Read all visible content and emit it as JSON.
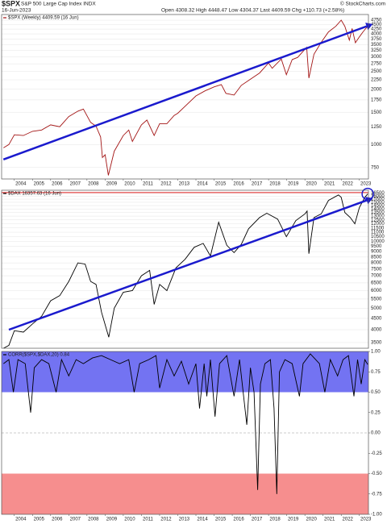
{
  "header": {
    "symbol": "$SPX",
    "name": "S&P 500 Large Cap Index INDX",
    "date": "16-Jun-2023",
    "quote": "Open 4308.32 High 4448.47 Low 4304.37 Last 4409.59 Chg +110.73 (+2.58%)",
    "source": "© StockCharts.com"
  },
  "chart_data": [
    {
      "type": "line",
      "title": "$SPX (Weekly) 4409.59 (16 Jun)",
      "color": "#a31515",
      "log": true,
      "x": [
        2003.4,
        2003.7,
        2004.0,
        2004.5,
        2005.0,
        2005.5,
        2006.0,
        2006.5,
        2007.0,
        2007.5,
        2007.8,
        2008.2,
        2008.5,
        2008.75,
        2008.85,
        2009.0,
        2009.18,
        2009.5,
        2010.0,
        2010.3,
        2010.5,
        2011.0,
        2011.3,
        2011.7,
        2012.0,
        2012.4,
        2012.8,
        2013.0,
        2013.5,
        2014.0,
        2014.5,
        2015.0,
        2015.4,
        2015.65,
        2016.1,
        2016.5,
        2017.0,
        2017.5,
        2018.0,
        2018.2,
        2018.7,
        2018.98,
        2019.3,
        2019.6,
        2020.0,
        2020.1,
        2020.22,
        2020.5,
        2020.9,
        2021.3,
        2021.7,
        2022.0,
        2022.2,
        2022.45,
        2022.6,
        2022.78,
        2023.0,
        2023.2,
        2023.46
      ],
      "values": [
        960,
        1000,
        1130,
        1120,
        1180,
        1200,
        1280,
        1250,
        1420,
        1520,
        1560,
        1320,
        1260,
        1100,
        850,
        880,
        680,
        920,
        1120,
        1200,
        1040,
        1280,
        1360,
        1120,
        1300,
        1300,
        1440,
        1480,
        1650,
        1840,
        1960,
        2060,
        2120,
        1900,
        1860,
        2100,
        2270,
        2450,
        2780,
        2600,
        2920,
        2400,
        2900,
        2980,
        3300,
        3380,
        2300,
        3100,
        3600,
        4100,
        4400,
        4750,
        4400,
        3700,
        4280,
        3580,
        3850,
        4100,
        4409.59
      ],
      "xlim": [
        2003.3,
        2023.5
      ],
      "ylim": [
        650,
        5100
      ],
      "xticks": [
        2004,
        2005,
        2006,
        2007,
        2008,
        2009,
        2010,
        2011,
        2012,
        2013,
        2014,
        2015,
        2016,
        2017,
        2018,
        2019,
        2020,
        2021,
        2022,
        2023
      ],
      "yticks": [
        750,
        1000,
        1250,
        1500,
        1750,
        2000,
        2250,
        2500,
        2750,
        3000,
        3250,
        3500,
        3750,
        4000,
        4250,
        4500,
        4750
      ],
      "grid": true,
      "trendline": {
        "x": [
          2003.4,
          2023.4
        ],
        "y": [
          830,
          4400
        ],
        "color": "#1a1acd"
      }
    },
    {
      "type": "line",
      "title": "$DAX 16357.63 (16 Jun)",
      "color": "#000000",
      "log": true,
      "x": [
        2003.4,
        2003.7,
        2004.0,
        2004.5,
        2005.0,
        2005.5,
        2006.0,
        2006.5,
        2007.0,
        2007.5,
        2007.9,
        2008.2,
        2008.5,
        2008.8,
        2009.2,
        2009.5,
        2010.0,
        2010.5,
        2011.0,
        2011.45,
        2011.7,
        2012.0,
        2012.4,
        2012.9,
        2013.4,
        2013.9,
        2014.4,
        2014.8,
        2015.25,
        2015.7,
        2016.1,
        2016.5,
        2016.9,
        2017.5,
        2017.9,
        2018.5,
        2018.98,
        2019.5,
        2020.0,
        2020.12,
        2020.22,
        2020.5,
        2020.9,
        2021.3,
        2021.85,
        2022.0,
        2022.2,
        2022.5,
        2022.75,
        2023.0,
        2023.3,
        2023.46
      ],
      "values": [
        3300,
        3400,
        3960,
        3900,
        4250,
        4600,
        5400,
        5700,
        6600,
        8000,
        7900,
        6600,
        6400,
        4800,
        3700,
        5000,
        5900,
        6000,
        7000,
        7400,
        5200,
        6400,
        6000,
        7600,
        8300,
        9400,
        9800,
        8600,
        12200,
        9600,
        8900,
        9700,
        11400,
        12800,
        13400,
        12600,
        10500,
        12400,
        13300,
        13700,
        8800,
        12800,
        13300,
        15300,
        16200,
        15800,
        13500,
        12800,
        12000,
        14200,
        15800,
        16357.63
      ],
      "xlim": [
        2003.3,
        2023.5
      ],
      "ylim": [
        3300,
        17000
      ],
      "yticks": [
        3500,
        4000,
        4500,
        5000,
        5500,
        6000,
        6500,
        7000,
        7500,
        8000,
        8500,
        9000,
        9500,
        10000,
        10500,
        11000,
        11500,
        12000,
        12500,
        13000,
        13500,
        14000,
        14500,
        15000,
        15500,
        16000,
        16500
      ],
      "grid": true,
      "hline": {
        "value": 16600,
        "color": "#e02020"
      },
      "trendline": {
        "x": [
          2003.7,
          2023.4
        ],
        "y": [
          4000,
          15300
        ],
        "color": "#1a1acd"
      }
    },
    {
      "type": "line",
      "title": "CORR($SPX,$DAX,20) 0.84",
      "color": "#000000",
      "log": false,
      "x": [
        2003.4,
        2003.7,
        2003.95,
        2004.2,
        2004.6,
        2004.9,
        2005.1,
        2005.5,
        2005.9,
        2006.3,
        2006.6,
        2007.0,
        2007.4,
        2007.8,
        2008.3,
        2008.8,
        2009.3,
        2009.8,
        2010.3,
        2010.6,
        2010.9,
        2011.4,
        2011.8,
        2012.0,
        2012.4,
        2012.8,
        2013.2,
        2013.6,
        2014.0,
        2014.2,
        2014.45,
        2014.6,
        2014.8,
        2015.05,
        2015.3,
        2015.7,
        2016.1,
        2016.4,
        2016.8,
        2017.0,
        2017.2,
        2017.4,
        2017.55,
        2017.8,
        2018.1,
        2018.3,
        2018.45,
        2018.6,
        2018.9,
        2019.3,
        2019.7,
        2019.9,
        2020.3,
        2020.8,
        2021.1,
        2021.4,
        2021.8,
        2022.1,
        2022.4,
        2022.7,
        2022.9,
        2023.1,
        2023.3,
        2023.46
      ],
      "values": [
        0.85,
        0.9,
        0.5,
        0.9,
        0.85,
        0.25,
        0.8,
        0.9,
        0.85,
        0.5,
        0.9,
        0.7,
        0.9,
        0.85,
        0.92,
        0.95,
        0.9,
        0.85,
        0.9,
        0.5,
        0.85,
        0.9,
        0.95,
        0.55,
        0.9,
        0.7,
        0.88,
        0.6,
        0.85,
        0.3,
        0.85,
        0.45,
        0.9,
        0.2,
        0.85,
        0.95,
        0.45,
        0.9,
        0.1,
        0.8,
        0.5,
        -0.7,
        0.6,
        0.85,
        0.9,
        0.3,
        -0.75,
        0.75,
        0.9,
        0.85,
        0.45,
        0.85,
        0.97,
        0.85,
        0.5,
        0.9,
        0.7,
        0.9,
        0.95,
        0.45,
        0.9,
        0.6,
        0.9,
        0.84
      ],
      "xlim": [
        2003.3,
        2023.5
      ],
      "ylim": [
        -1,
        1
      ],
      "xticks": [
        2004,
        2005,
        2006,
        2007,
        2008,
        2009,
        2010,
        2011,
        2012,
        2013,
        2014,
        2015,
        2016,
        2017,
        2018,
        2019,
        2020,
        2021,
        2022,
        2023
      ],
      "yticks": [
        {
          "value": 1,
          "label": "1.00"
        },
        {
          "value": 0.75,
          "label": "0.75"
        },
        {
          "value": 0.5,
          "label": "0.50"
        },
        {
          "value": 0.25,
          "label": "0.25"
        },
        {
          "value": 0,
          "label": "0.00"
        },
        {
          "value": -0.25,
          "label": "-0.25"
        },
        {
          "value": -0.5,
          "label": "-0.50"
        },
        {
          "value": -0.75,
          "label": "-0.75"
        },
        {
          "value": -1,
          "label": "-1.00"
        }
      ],
      "grid": false,
      "dashed_lines": [
        0
      ],
      "bands": [
        {
          "range": [
            0.5,
            1
          ],
          "color": "#5a5af0"
        },
        {
          "range": [
            -1,
            -0.5
          ],
          "color": "#f47a7a"
        }
      ]
    }
  ]
}
